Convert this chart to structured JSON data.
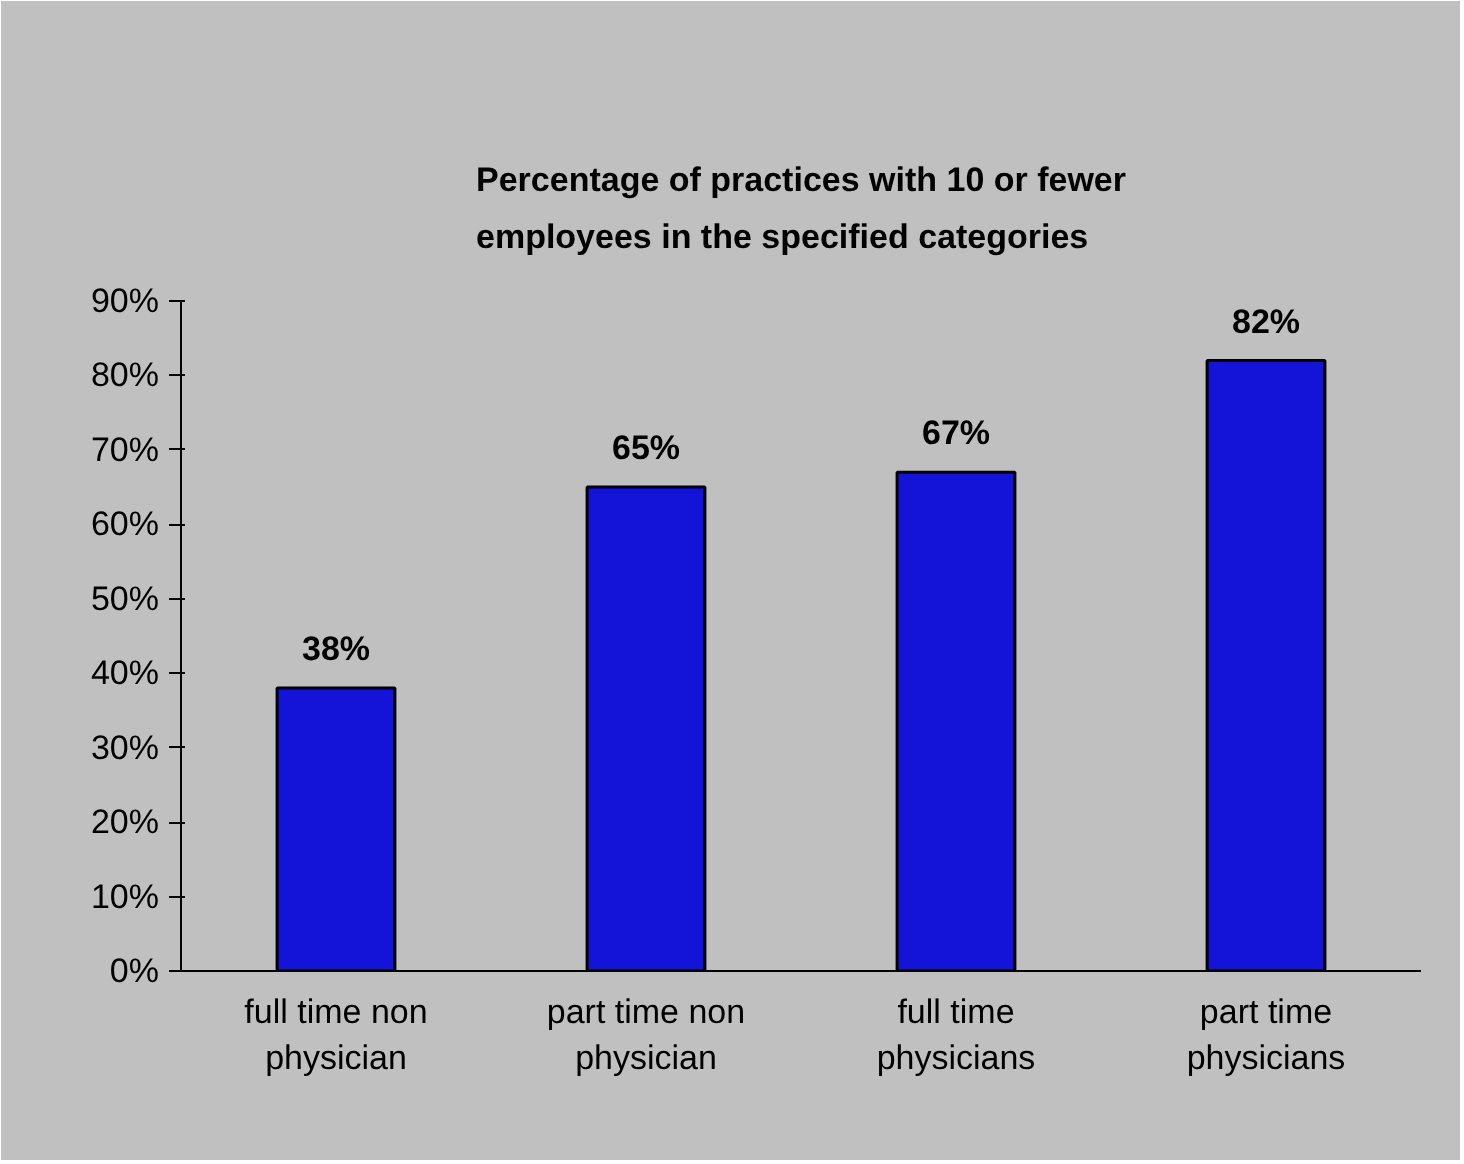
{
  "chart_data": {
    "type": "bar",
    "title": "Percentage of practices with 10 or fewer employees in the specified categories",
    "categories": [
      "full time non physician",
      "part time non physician",
      "full time physicians",
      "part time physicians"
    ],
    "values": [
      38,
      65,
      67,
      82
    ],
    "color": "#1414d8",
    "value_labels": [
      "38%",
      "65%",
      "67%",
      "82%"
    ],
    "ylim": [
      0,
      90
    ],
    "yticks": [
      {
        "value": 0,
        "label": "0%"
      },
      {
        "value": 10,
        "label": "10%"
      },
      {
        "value": 20,
        "label": "20%"
      },
      {
        "value": 30,
        "label": "30%"
      },
      {
        "value": 40,
        "label": "40%"
      },
      {
        "value": 50,
        "label": "50%"
      },
      {
        "value": 60,
        "label": "60%"
      },
      {
        "value": 70,
        "label": "70%"
      },
      {
        "value": 80,
        "label": "80%"
      },
      {
        "value": 90,
        "label": "90%"
      }
    ],
    "grid": false
  }
}
